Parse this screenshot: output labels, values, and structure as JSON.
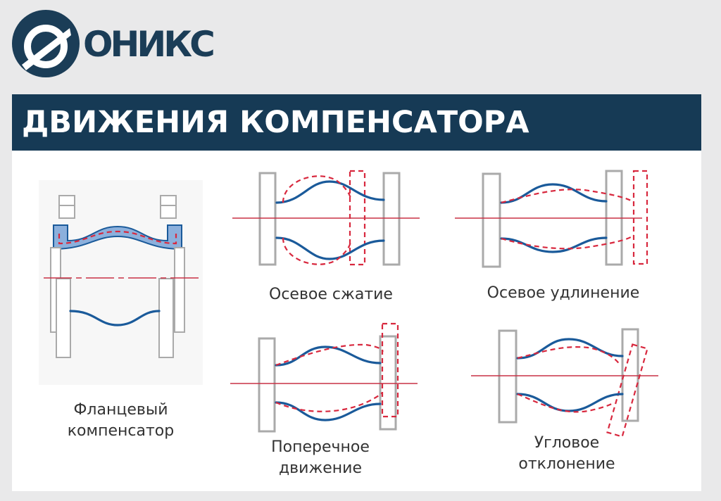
{
  "brand": {
    "name": "ОНИКС",
    "logo": "onyx-logo-icon",
    "color": "#1b3d57"
  },
  "banner": {
    "title": "ДВИЖЕНИЯ КОМПЕНСАТОРА",
    "background": "#163a55"
  },
  "colors": {
    "pipe_line": "#1a5a9a",
    "dashed": "#d8283e",
    "flange": "#aaaaaa",
    "axis": "#c93045",
    "bellows_fill": "#8cb0dc"
  },
  "captions": {
    "flanged": [
      "Фланцевый",
      "компенсатор"
    ],
    "axial_compression": "Осевое сжатие",
    "axial_elongation": "Осевое удлинение",
    "lateral": [
      "Поперечное",
      "движение"
    ],
    "angular": [
      "Угловое",
      "отклонение"
    ]
  }
}
